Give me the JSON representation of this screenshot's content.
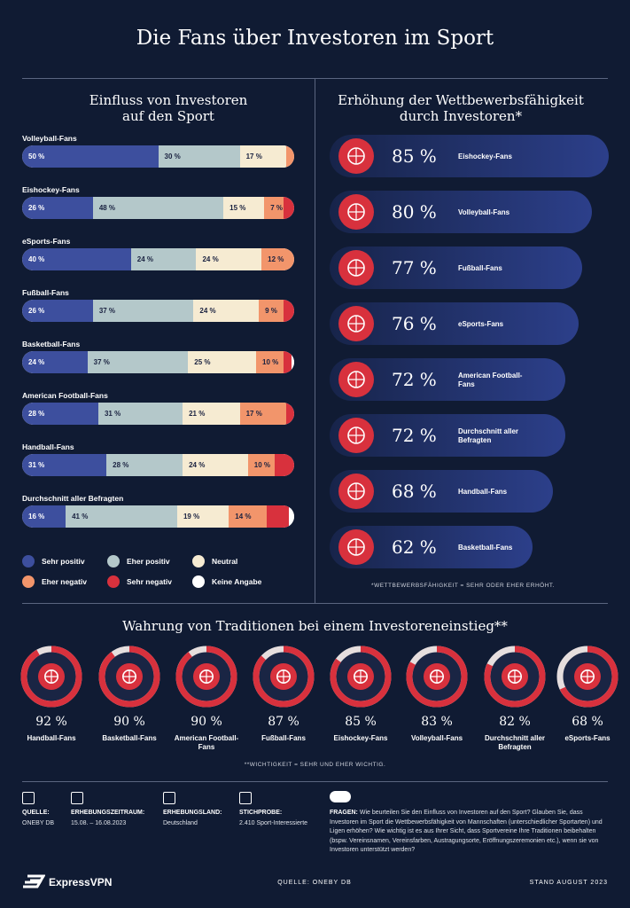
{
  "title": "Die Fans über Investoren im Sport",
  "chart_data": [
    {
      "type": "stacked-bar",
      "title": "Einfluss von Investoren auf den Sport",
      "categories": [
        "Volleyball-Fans",
        "Eishockey-Fans",
        "eSports-Fans",
        "Fußball-Fans",
        "Basketball-Fans",
        "American Football-Fans",
        "Handball-Fans",
        "Durchschnitt aller Befragten"
      ],
      "series": [
        {
          "name": "Sehr positiv",
          "color": "#3d4f9e",
          "values": [
            50,
            26,
            40,
            26,
            24,
            28,
            31,
            16
          ],
          "value_labels": [
            "50 %",
            "26 %",
            "40 %",
            "26 %",
            "24 %",
            "28 %",
            "31 %",
            "16 %"
          ]
        },
        {
          "name": "Eher positiv",
          "color": "#b4c8ca",
          "values": [
            30,
            48,
            24,
            37,
            37,
            31,
            28,
            41
          ],
          "value_labels": [
            "30 %",
            "48 %",
            "24 %",
            "37 %",
            "37 %",
            "31 %",
            "28 %",
            "41 %"
          ]
        },
        {
          "name": "Neutral",
          "color": "#f6ebd2",
          "values": [
            17,
            15,
            24,
            24,
            25,
            21,
            24,
            19
          ],
          "value_labels": [
            "17 %",
            "15 %",
            "24 %",
            "24 %",
            "25 %",
            "21 %",
            "24 %",
            "19 %"
          ]
        },
        {
          "name": "Eher negativ",
          "color": "#f2956b",
          "values": [
            3,
            7,
            12,
            9,
            10,
            17,
            10,
            14
          ],
          "value_labels": [
            null,
            "7 %",
            "12 %",
            "9 %",
            "10 %",
            "17 %",
            "10 %",
            "14 %"
          ]
        },
        {
          "name": "Sehr negativ",
          "color": "#d8313d",
          "values": [
            0,
            4,
            0,
            4,
            3,
            3,
            7,
            8
          ],
          "value_labels": [
            null,
            null,
            null,
            null,
            null,
            null,
            null,
            null
          ]
        },
        {
          "name": "Keine Angabe",
          "color": "#ffffff",
          "values": [
            0,
            0,
            0,
            0,
            1,
            0,
            0,
            2
          ],
          "value_labels": [
            null,
            null,
            null,
            null,
            null,
            null,
            null,
            null
          ]
        }
      ]
    },
    {
      "type": "bar",
      "title": "Erhöhung der Wettbewerbsfähigkeit durch Investoren*",
      "categories": [
        "Eishockey-Fans",
        "Volleyball-Fans",
        "Fußball-Fans",
        "eSports-Fans",
        "American Football-Fans",
        "Durchschnitt aller Befragten",
        "Handball-Fans",
        "Basketball-Fans"
      ],
      "values": [
        85,
        80,
        77,
        76,
        72,
        72,
        68,
        62
      ],
      "value_labels": [
        "85 %",
        "80 %",
        "77 %",
        "76 %",
        "72 %",
        "72 %",
        "68 %",
        "62 %"
      ],
      "color": "#2c3f8a",
      "note": "*WETTBEWERBSFÄHIGKEIT = SEHR ODER EHER ERHÖHT."
    },
    {
      "type": "donut",
      "title": "Wahrung von Traditionen bei einem Investoreneinstieg**",
      "categories": [
        "Handball-Fans",
        "Basketball-Fans",
        "American Football-Fans",
        "Fußball-Fans",
        "Eishockey-Fans",
        "Volleyball-Fans",
        "Durchschnitt aller Befragten",
        "eSports-Fans"
      ],
      "values": [
        92,
        90,
        90,
        87,
        85,
        83,
        82,
        68
      ],
      "value_labels": [
        "92 %",
        "90 %",
        "90 %",
        "87 %",
        "85 %",
        "83 %",
        "82 %",
        "68 %"
      ],
      "color": "#d8313d",
      "note": "**WICHTIGKEIT = SEHR UND EHER WICHTIG."
    }
  ],
  "footer": {
    "items": [
      {
        "label": "QUELLE:",
        "value": "ONEBY DB"
      },
      {
        "label": "ERHEBUNGSZEITRAUM:",
        "value": "15.08. – 16.08.2023"
      },
      {
        "label": "ERHEBUNGSLAND:",
        "value": "Deutschland"
      },
      {
        "label": "STICHPROBE:",
        "value": "2.410 Sport-Interessierte"
      }
    ],
    "question": {
      "label": "FRAGEN:",
      "text": "Wie beurteilen Sie den Einfluss von Investoren auf den Sport? Glauben Sie, dass Investoren im Sport die Wettbewerbsfähigkeit von Mannschaften (unterschiedlicher Sportarten) und Ligen erhöhen? Wie wichtig ist es aus Ihrer Sicht, dass Sportvereine Ihre Traditionen beibehalten (bspw. Vereinsnamen, Vereinsfarben, Austragungsorte, Eröffnungszeremonien etc.), wenn sie von Investoren unterstützt werden?"
    }
  },
  "bottom": {
    "brand": "ExpressVPN",
    "source": "QUELLE: ONEBY DB",
    "date": "STAND AUGUST 2023"
  }
}
